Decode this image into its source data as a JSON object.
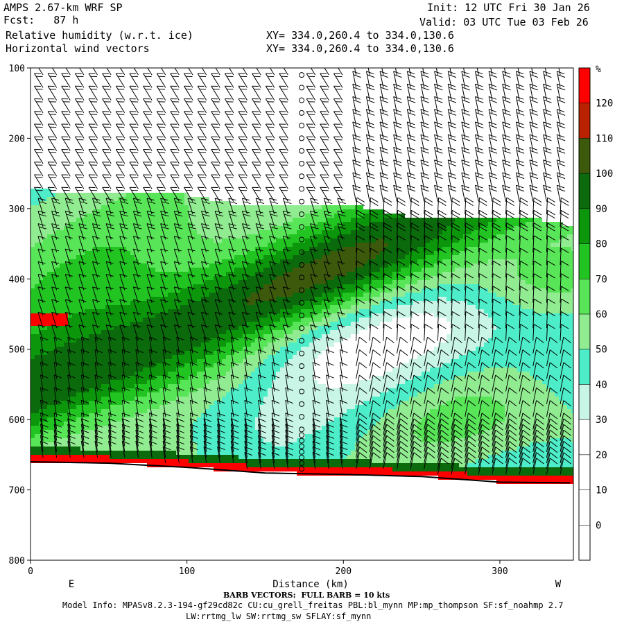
{
  "header": {
    "model": "AMPS 2.67-km WRF SP",
    "fcst": "Fcst:   87 h",
    "field1": "Relative humidity (w.r.t. ice)",
    "field2": "Horizontal wind vectors",
    "init": "Init: 12 UTC Fri 30 Jan 26",
    "valid": "Valid: 03 UTC Tue 03 Feb 26",
    "xy1": "XY= 334.0,260.4 to 334.0,130.6",
    "xy2": "XY= 334.0,260.4 to 334.0,130.6"
  },
  "footer": {
    "barb": "BARB VECTORS:  FULL BARB = 10 kts",
    "model_info": "Model Info: MPASv8.2.3-194-gf29cd82c CU:cu_grell_freitas PBL:bl_mynn MP:mp_thompson SF:sf_noahmp 2.7",
    "model_info2": "LW:rrtmg_lw SW:rrtmg_sw SFLAY:sf_mynn"
  },
  "chart_data": {
    "type": "heatmap",
    "title": "Relative humidity (w.r.t. ice)",
    "xlabel": "Distance (km)",
    "ylabel": "",
    "x_ticks": [
      0,
      100,
      200,
      300
    ],
    "y_ticks": [
      100,
      200,
      300,
      400,
      500,
      600,
      700,
      800
    ],
    "xlim": [
      0,
      347
    ],
    "ylim": [
      100,
      800
    ],
    "y_inverted": true,
    "left_end_label": "E",
    "right_end_label": "W",
    "colorbar": {
      "unit": "%",
      "levels": [
        0,
        10,
        20,
        30,
        40,
        50,
        60,
        70,
        80,
        90,
        100,
        110,
        120
      ],
      "colors": [
        "#ffffff",
        "#ffffff",
        "#ffffff",
        "#ffffff",
        "#c8f5e6",
        "#4dedc9",
        "#91ec91",
        "#58e558",
        "#22c422",
        "#0c960c",
        "#0b6a0b",
        "#3d5a0c",
        "#b82200",
        "#ff0000"
      ]
    },
    "terrain_pressure": [
      [
        0,
        660
      ],
      [
        50,
        662
      ],
      [
        100,
        668
      ],
      [
        150,
        676
      ],
      [
        200,
        678
      ],
      [
        250,
        681
      ],
      [
        300,
        689
      ],
      [
        347,
        690
      ]
    ],
    "barbs": "Wind barbs over the full cross-section; full barb = 10 kts"
  }
}
